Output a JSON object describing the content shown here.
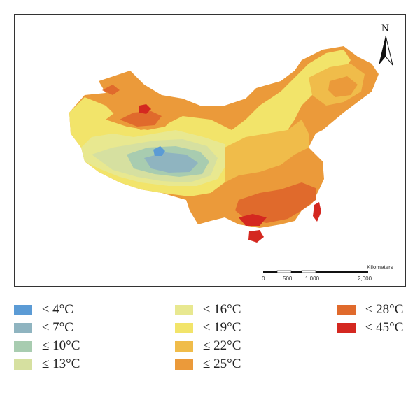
{
  "north_label": "N",
  "scale_bar": {
    "unit": "Kilometers",
    "ticks": [
      "0",
      "500",
      "1,000",
      "2,000"
    ]
  },
  "legend": {
    "columns": [
      [
        {
          "label": "≤ 4°C",
          "color": "#5b9bd5"
        },
        {
          "label": "≤ 7°C",
          "color": "#8fb4c0"
        },
        {
          "label": "≤ 10°C",
          "color": "#a8ccb0"
        },
        {
          "label": "≤ 13°C",
          "color": "#d6e0a0"
        }
      ],
      [
        {
          "label": "≤ 16°C",
          "color": "#e8e890"
        },
        {
          "label": "≤ 19°C",
          "color": "#f2e46a"
        },
        {
          "label": "≤ 22°C",
          "color": "#f0bc4a"
        },
        {
          "label": "≤ 25°C",
          "color": "#eb9a3a"
        }
      ],
      [
        {
          "label": "≤ 28°C",
          "color": "#e06a2c"
        },
        {
          "label": "≤ 45°C",
          "color": "#d42820"
        }
      ]
    ]
  }
}
